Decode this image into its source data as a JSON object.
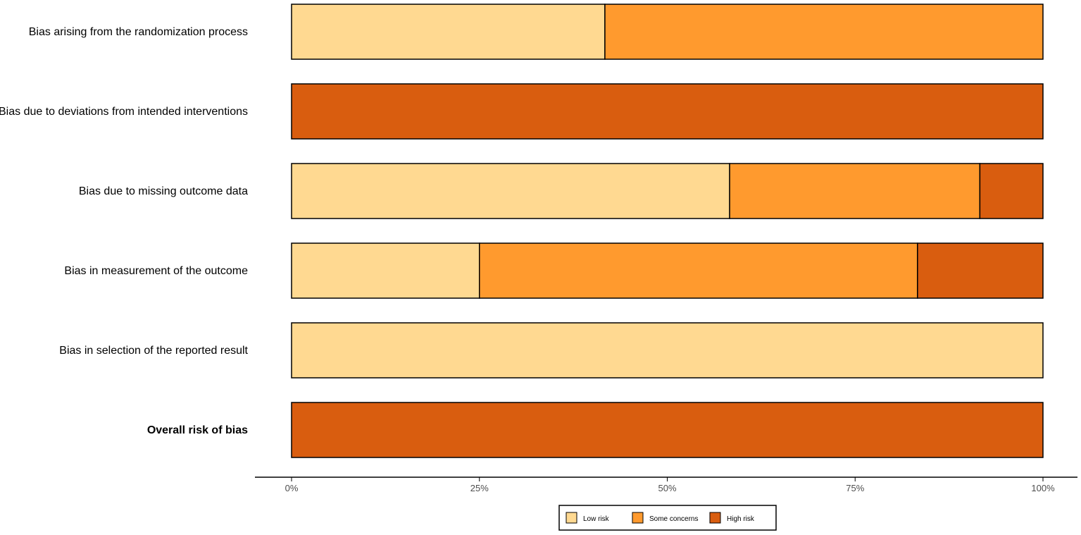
{
  "chart_data": {
    "type": "bar",
    "orientation": "horizontal",
    "stacked": true,
    "categories": [
      "Bias arising from the randomization process",
      "Bias due to deviations from intended interventions",
      "Bias due to missing outcome data",
      "Bias in measurement of the outcome",
      "Bias in selection of the reported result",
      "Overall risk of bias"
    ],
    "bold_categories": [
      "Overall risk of bias"
    ],
    "series": [
      {
        "name": "Low risk",
        "color": "#FFD991",
        "values": [
          41.7,
          0,
          58.3,
          25.0,
          100,
          0
        ]
      },
      {
        "name": "Some concerns",
        "color": "#FF9A2E",
        "values": [
          58.3,
          0,
          33.3,
          58.3,
          0,
          0
        ]
      },
      {
        "name": "High risk",
        "color": "#D95D0F",
        "values": [
          0,
          100,
          8.4,
          16.7,
          0,
          100
        ]
      }
    ],
    "x_ticks": [
      "0%",
      "25%",
      "50%",
      "75%",
      "100%"
    ],
    "x_tick_values": [
      0,
      25,
      50,
      75,
      100
    ],
    "xlim": [
      0,
      100
    ],
    "xlabel": "",
    "ylabel": "",
    "grid": false,
    "legend_position": "bottom-center"
  }
}
